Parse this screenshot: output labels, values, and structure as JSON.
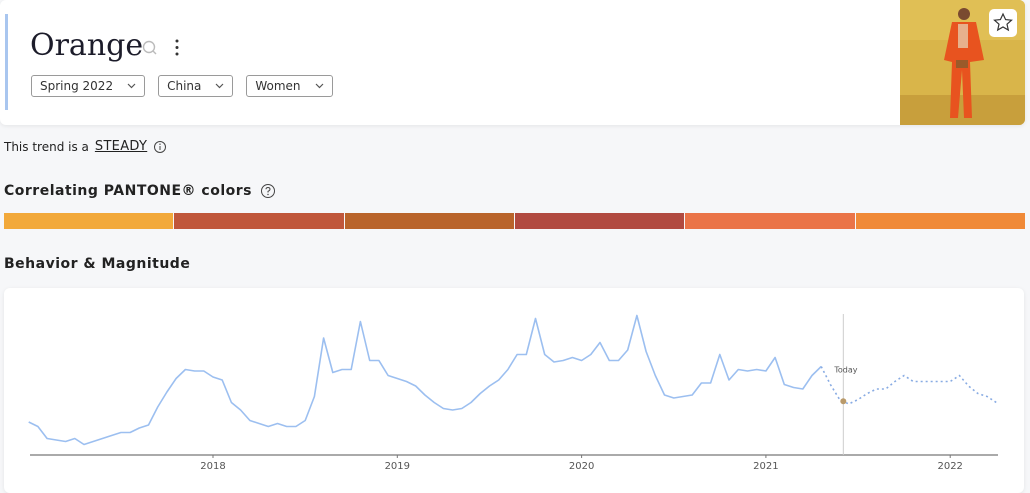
{
  "header": {
    "title": "Orange",
    "filters": [
      "Spring 2022",
      "China",
      "Women"
    ]
  },
  "trend": {
    "prefix": "This trend is a",
    "status": "STEADY"
  },
  "pantone": {
    "title": "Correlating PANTONE® colors",
    "colors": [
      "#f2a93b",
      "#c0573b",
      "#b9642b",
      "#b14a40",
      "#ea7448",
      "#f08a38"
    ]
  },
  "chart_data": {
    "type": "line",
    "title": "Behavior & Magnitude",
    "x": [
      2017,
      2017.05,
      2017.1,
      2017.15,
      2017.2,
      2017.25,
      2017.3,
      2017.35,
      2017.4,
      2017.45,
      2017.5,
      2017.55,
      2017.6,
      2017.65,
      2017.7,
      2017.75,
      2017.8,
      2017.85,
      2017.9,
      2017.95,
      2018,
      2018.05,
      2018.1,
      2018.15,
      2018.2,
      2018.25,
      2018.3,
      2018.35,
      2018.4,
      2018.45,
      2018.5,
      2018.55,
      2018.6,
      2018.65,
      2018.7,
      2018.75,
      2018.8,
      2018.85,
      2018.9,
      2018.95,
      2019,
      2019.05,
      2019.1,
      2019.15,
      2019.2,
      2019.25,
      2019.3,
      2019.35,
      2019.4,
      2019.45,
      2019.5,
      2019.55,
      2019.6,
      2019.65,
      2019.7,
      2019.75,
      2019.8,
      2019.85,
      2019.9,
      2019.95,
      2020,
      2020.05,
      2020.1,
      2020.15,
      2020.2,
      2020.25,
      2020.3,
      2020.35,
      2020.4,
      2020.45,
      2020.5,
      2020.55,
      2020.6,
      2020.65,
      2020.7,
      2020.75,
      2020.8,
      2020.85,
      2020.9,
      2020.95,
      2021,
      2021.05,
      2021.1,
      2021.15,
      2021.2,
      2021.25,
      2021.3,
      2021.35,
      2021.4,
      2021.45,
      2021.5,
      2021.55,
      2021.6,
      2021.65,
      2021.7,
      2021.75,
      2021.8,
      2021.85,
      2021.9,
      2021.95,
      2022,
      2022.05,
      2022.1,
      2022.15,
      2022.2,
      2022.25
    ],
    "series": [
      {
        "color": "#9cbff0",
        "style": "solid",
        "values": [
          22,
          19,
          11,
          10,
          9,
          11,
          7,
          9,
          11,
          13,
          15,
          15,
          18,
          20,
          32,
          42,
          51,
          57,
          56,
          56,
          52,
          50,
          35,
          30,
          23,
          21,
          19,
          21,
          19,
          19,
          23,
          39,
          78,
          55,
          57,
          57,
          89,
          63,
          63,
          53,
          51,
          49,
          46,
          40,
          35,
          31,
          30,
          31,
          35,
          41,
          46,
          50,
          57,
          67,
          67,
          91,
          67,
          62,
          63,
          65,
          63,
          67,
          75,
          63,
          63,
          70,
          93,
          69,
          53,
          40,
          38,
          39,
          40,
          48,
          48,
          67,
          50,
          57,
          56,
          57,
          56,
          65,
          47,
          45,
          44,
          53,
          59,
          null,
          null,
          null,
          null,
          null,
          null,
          null,
          null,
          null,
          null,
          null,
          null,
          null,
          null,
          null,
          null,
          null,
          null,
          null
        ]
      },
      {
        "color": "#88abe3",
        "style": "dotted",
        "values": [
          null,
          null,
          null,
          null,
          null,
          null,
          null,
          null,
          null,
          null,
          null,
          null,
          null,
          null,
          null,
          null,
          null,
          null,
          null,
          null,
          null,
          null,
          null,
          null,
          null,
          null,
          null,
          null,
          null,
          null,
          null,
          null,
          null,
          null,
          null,
          null,
          null,
          null,
          null,
          null,
          null,
          null,
          null,
          null,
          null,
          null,
          null,
          null,
          null,
          null,
          null,
          null,
          null,
          null,
          null,
          null,
          null,
          null,
          null,
          null,
          null,
          null,
          null,
          null,
          null,
          null,
          null,
          null,
          null,
          null,
          null,
          null,
          null,
          null,
          null,
          null,
          null,
          null,
          null,
          null,
          null,
          null,
          null,
          null,
          null,
          null,
          59,
          47,
          37,
          34,
          37,
          41,
          44,
          44,
          49,
          53,
          49,
          49,
          49,
          49,
          49,
          53,
          46,
          41,
          39,
          35
        ]
      }
    ],
    "today": {
      "label": "Today",
      "x": 2021.42
    },
    "xlim": [
      2017,
      2022.3
    ],
    "xticks": [
      2018,
      2019,
      2020,
      2021,
      2022
    ],
    "ylim": [
      0,
      100
    ],
    "grid": false
  }
}
